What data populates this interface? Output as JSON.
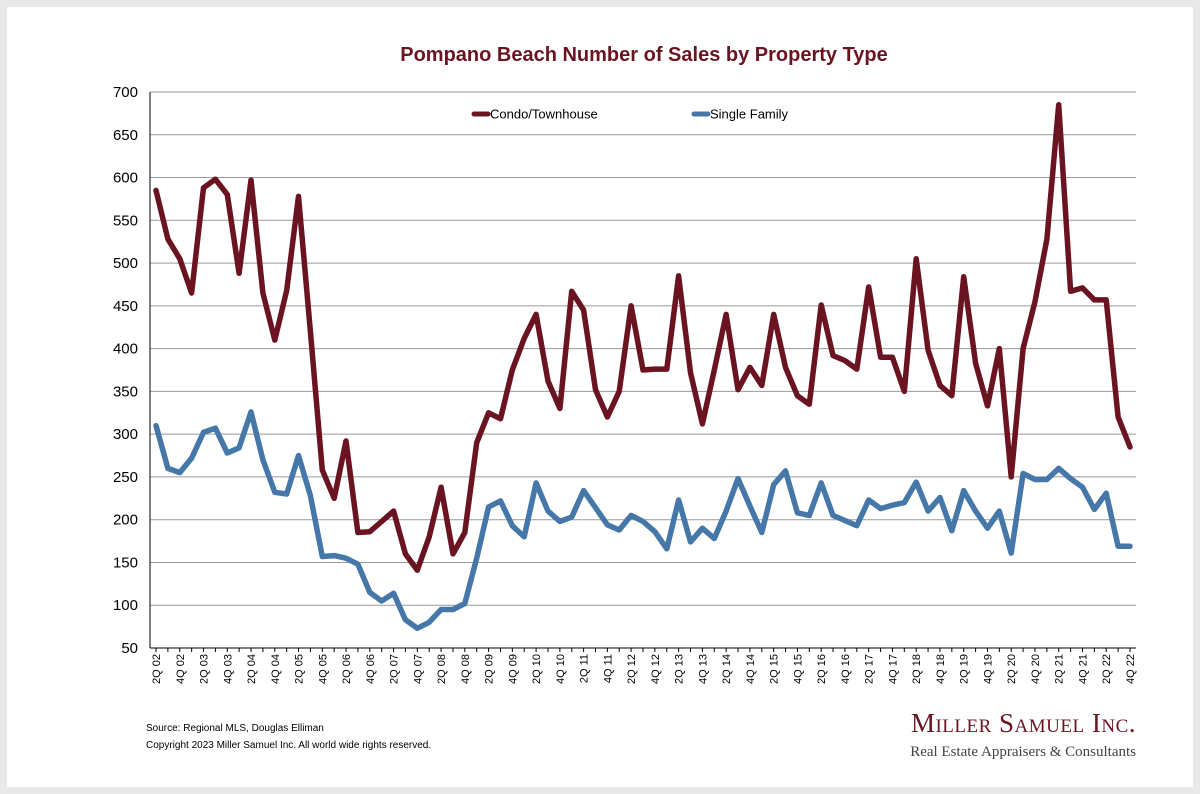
{
  "chart_data": {
    "type": "line",
    "title": "Pompano Beach Number of Sales by Property Type",
    "xlabel": "",
    "ylabel": "",
    "ylim": [
      50,
      700
    ],
    "yticks": [
      50,
      100,
      150,
      200,
      250,
      300,
      350,
      400,
      450,
      500,
      550,
      600,
      650,
      700
    ],
    "grid": "horizontal",
    "legend": "top",
    "x": [
      "2Q 02",
      "3Q 02",
      "4Q 02",
      "1Q 03",
      "2Q 03",
      "3Q 03",
      "4Q 03",
      "1Q 04",
      "2Q 04",
      "3Q 04",
      "4Q 04",
      "1Q 05",
      "2Q 05",
      "3Q 05",
      "4Q 05",
      "1Q 06",
      "2Q 06",
      "3Q 06",
      "4Q 06",
      "1Q 07",
      "2Q 07",
      "3Q 07",
      "4Q 07",
      "1Q 08",
      "2Q 08",
      "3Q 08",
      "4Q 08",
      "1Q 09",
      "2Q 09",
      "3Q 09",
      "4Q 09",
      "1Q 10",
      "2Q 10",
      "3Q 10",
      "4Q 10",
      "1Q 11",
      "2Q 11",
      "3Q 11",
      "4Q 11",
      "1Q 12",
      "2Q 12",
      "3Q 12",
      "4Q 12",
      "1Q 13",
      "2Q 13",
      "3Q 13",
      "4Q 13",
      "1Q 14",
      "2Q 14",
      "3Q 14",
      "4Q 14",
      "1Q 15",
      "2Q 15",
      "3Q 15",
      "4Q 15",
      "1Q 16",
      "2Q 16",
      "3Q 16",
      "4Q 16",
      "1Q 17",
      "2Q 17",
      "3Q 17",
      "4Q 17",
      "1Q 18",
      "2Q 18",
      "3Q 18",
      "4Q 18",
      "1Q 19",
      "2Q 19",
      "3Q 19",
      "4Q 19",
      "1Q 20",
      "2Q 20",
      "3Q 20",
      "4Q 20",
      "1Q 21",
      "2Q 21",
      "3Q 21",
      "4Q 21",
      "1Q 22",
      "2Q 22",
      "3Q 22",
      "4Q 22"
    ],
    "xtick_labels": [
      "2Q 02",
      "4Q 02",
      "2Q 03",
      "4Q 03",
      "2Q 04",
      "4Q 04",
      "2Q 05",
      "4Q 05",
      "2Q 06",
      "4Q 06",
      "2Q 07",
      "4Q 07",
      "2Q 08",
      "4Q 08",
      "2Q 09",
      "4Q 09",
      "2Q 10",
      "4Q 10",
      "2Q 11",
      "4Q 11",
      "2Q 12",
      "4Q 12",
      "2Q 13",
      "4Q 13",
      "2Q 14",
      "4Q 14",
      "2Q 15",
      "4Q 15",
      "2Q 16",
      "4Q 16",
      "2Q 17",
      "4Q 17",
      "2Q 18",
      "4Q 18",
      "2Q 19",
      "4Q 19",
      "2Q 20",
      "4Q 20",
      "2Q 21",
      "4Q 21",
      "2Q 22",
      "4Q 22"
    ],
    "series": [
      {
        "name": "Condo/Townhouse",
        "color": "#6b1421",
        "values": [
          585,
          528,
          505,
          465,
          588,
          598,
          580,
          488,
          597,
          465,
          410,
          468,
          578,
          420,
          258,
          225,
          292,
          185,
          186,
          198,
          210,
          160,
          141,
          180,
          238,
          160,
          185,
          290,
          325,
          318,
          375,
          412,
          440,
          362,
          330,
          467,
          445,
          352,
          320,
          350,
          450,
          375,
          376,
          376,
          485,
          372,
          312,
          375,
          440,
          352,
          378,
          357,
          440,
          378,
          345,
          335,
          451,
          392,
          386,
          376,
          472,
          390,
          390,
          350,
          505,
          398,
          357,
          345,
          484,
          383,
          333,
          400,
          250,
          400,
          455,
          528,
          685,
          467,
          471,
          457,
          457,
          320,
          285
        ]
      },
      {
        "name": "Single Family",
        "color": "#4577a9",
        "values": [
          310,
          260,
          255,
          272,
          302,
          307,
          278,
          284,
          326,
          270,
          232,
          230,
          275,
          228,
          157,
          158,
          155,
          148,
          115,
          105,
          114,
          83,
          73,
          80,
          95,
          95,
          102,
          155,
          215,
          222,
          193,
          180,
          243,
          210,
          198,
          203,
          234,
          214,
          194,
          188,
          205,
          198,
          186,
          166,
          223,
          174,
          190,
          178,
          210,
          248,
          216,
          185,
          241,
          257,
          208,
          205,
          243,
          205,
          199,
          193,
          223,
          213,
          217,
          220,
          244,
          210,
          226,
          187,
          234,
          210,
          190,
          210,
          161,
          254,
          247,
          247,
          260,
          248,
          238,
          212,
          231,
          169,
          169
        ]
      }
    ]
  },
  "footer": {
    "source": "Source: Regional MLS, Douglas Elliman",
    "copyright": "Copyright 2023 Miller Samuel Inc.  All world wide rights reserved.",
    "brand_name": "Miller Samuel Inc.",
    "brand_tagline": "Real Estate Appraisers & Consultants"
  }
}
